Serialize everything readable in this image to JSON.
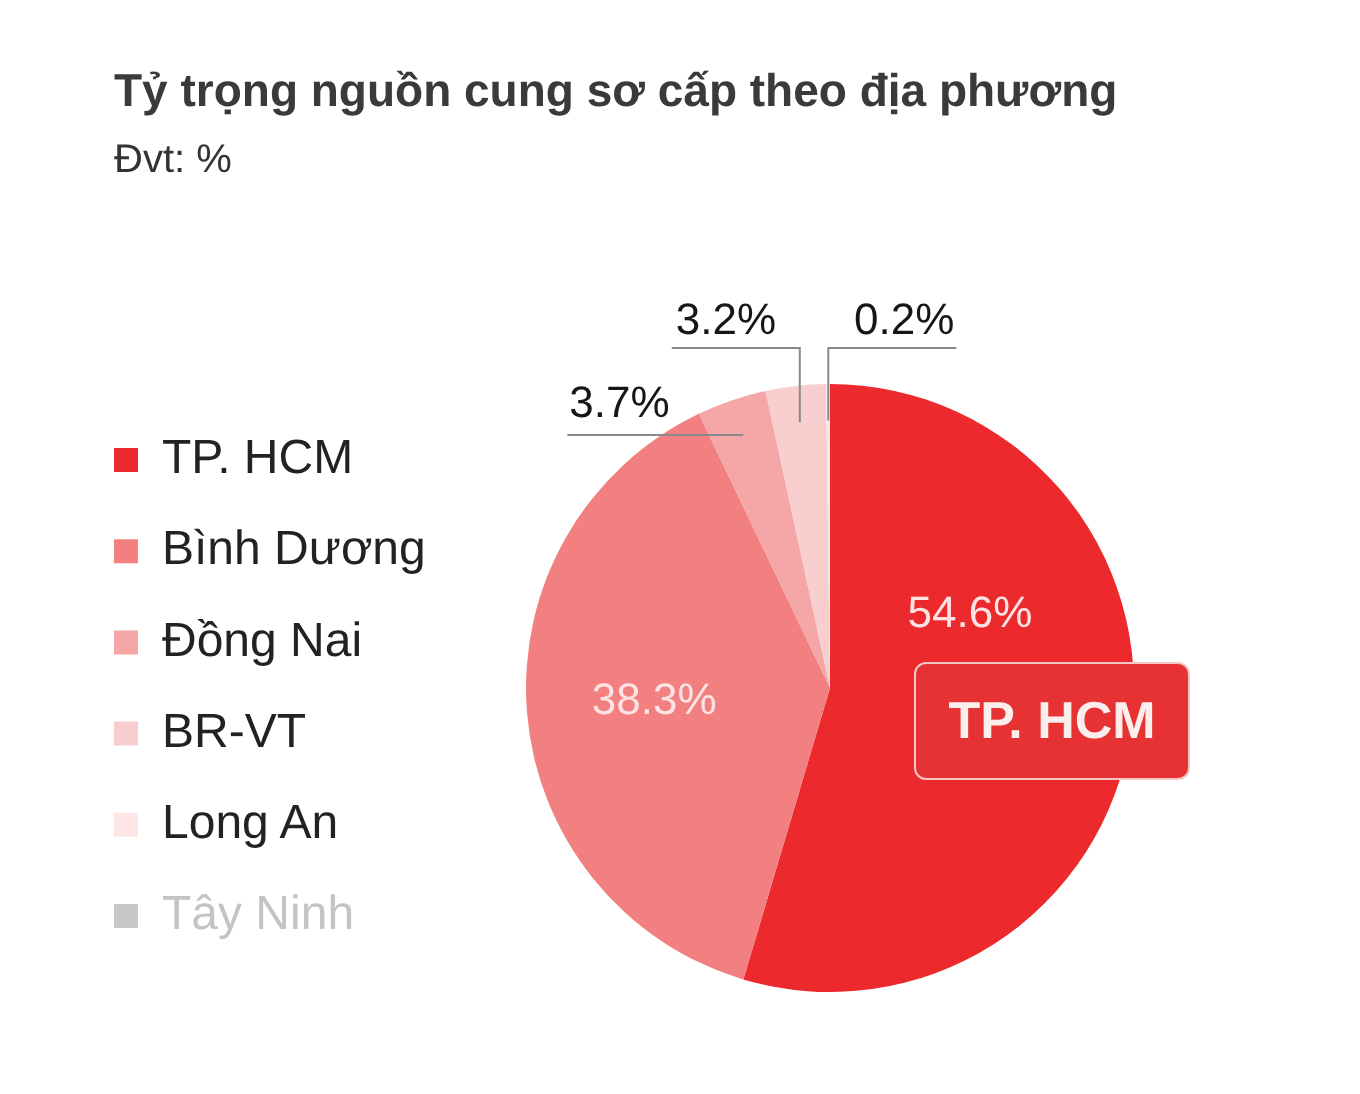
{
  "chart_data": {
    "type": "pie",
    "title": "Tỷ trọng nguồn cung sơ cấp theo địa phương",
    "subtitle": "Đvt: %",
    "categories": [
      "TP. HCM",
      "Bình Dương",
      "Đồng Nai",
      "BR-VT",
      "Long An",
      "Tây Ninh"
    ],
    "values": [
      54.6,
      38.3,
      3.7,
      3.2,
      0.2,
      null
    ],
    "value_labels": [
      "54.6%",
      "38.3%",
      "3.7%",
      "3.2%",
      "0.2%",
      null
    ],
    "colors": [
      "#ec2a2e",
      "#f38080",
      "#f5a6a6",
      "#f9cece",
      "#fde6e6",
      "#c8c8c8"
    ],
    "legend": "left",
    "annotations": [
      "TP. HCM"
    ]
  }
}
